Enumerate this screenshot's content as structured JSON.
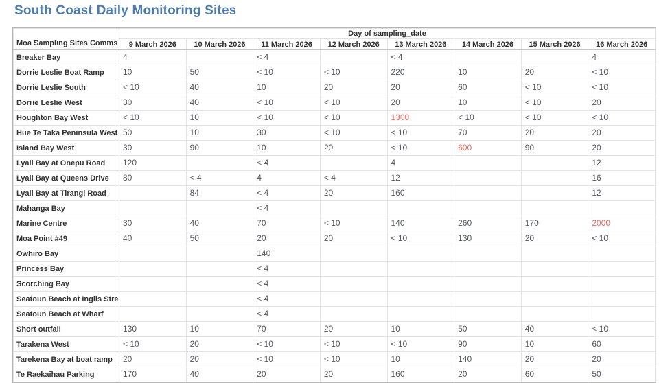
{
  "title": "South Coast Daily Monitoring Sites",
  "colors": {
    "title_blue": "#4d7cb0",
    "exceedance_red": "#f4655c"
  },
  "chart_data": {
    "type": "table",
    "title": "South Coast Daily Monitoring Sites",
    "corner_header": "Moa Sampling Sites Comms",
    "group_header": "Day of sampling_date",
    "columns": [
      "9 March 2026",
      "10 March 2026",
      "11 March 2026",
      "12 March 2026",
      "13 March 2026",
      "14 March 2026",
      "15 March 2026",
      "16 March 2026"
    ],
    "rows": [
      {
        "site": "Breaker Bay",
        "values": [
          "4",
          "",
          "< 4",
          "",
          "< 4",
          "",
          "",
          "4"
        ],
        "red": []
      },
      {
        "site": "Dorrie Leslie Boat Ramp",
        "values": [
          "10",
          "50",
          "< 10",
          "< 10",
          "220",
          "10",
          "20",
          "< 10"
        ],
        "red": []
      },
      {
        "site": "Dorrie Leslie South",
        "values": [
          "< 10",
          "40",
          "10",
          "20",
          "20",
          "60",
          "< 10",
          "< 10"
        ],
        "red": []
      },
      {
        "site": "Dorrie Leslie West",
        "values": [
          "30",
          "40",
          "< 10",
          "< 10",
          "20",
          "10",
          "< 10",
          "20"
        ],
        "red": []
      },
      {
        "site": "Houghton Bay West",
        "values": [
          "< 10",
          "10",
          "< 10",
          "< 10",
          "1300",
          "< 10",
          "< 10",
          "< 10"
        ],
        "red": [
          4
        ]
      },
      {
        "site": "Hue Te Taka Peninsula West",
        "values": [
          "50",
          "10",
          "30",
          "< 10",
          "< 10",
          "70",
          "20",
          "20"
        ],
        "red": []
      },
      {
        "site": "Island Bay West",
        "values": [
          "30",
          "90",
          "10",
          "20",
          "< 10",
          "600",
          "90",
          "20"
        ],
        "red": [
          5
        ]
      },
      {
        "site": "Lyall Bay at Onepu Road",
        "values": [
          "120",
          "",
          "< 4",
          "",
          "4",
          "",
          "",
          "12"
        ],
        "red": []
      },
      {
        "site": "Lyall Bay at Queens Drive",
        "values": [
          "80",
          "< 4",
          "4",
          "< 4",
          "12",
          "",
          "",
          "16"
        ],
        "red": []
      },
      {
        "site": "Lyall Bay at Tirangi Road",
        "values": [
          "",
          "84",
          "< 4",
          "20",
          "160",
          "",
          "",
          "12"
        ],
        "red": []
      },
      {
        "site": "Mahanga Bay",
        "values": [
          "",
          "",
          "< 4",
          "",
          "",
          "",
          "",
          ""
        ],
        "red": []
      },
      {
        "site": "Marine Centre",
        "values": [
          "30",
          "40",
          "70",
          "< 10",
          "140",
          "260",
          "170",
          "2000"
        ],
        "red": [
          7
        ]
      },
      {
        "site": "Moa Point #49",
        "values": [
          "40",
          "50",
          "20",
          "20",
          "< 10",
          "130",
          "20",
          "< 10"
        ],
        "red": []
      },
      {
        "site": "Owhiro Bay",
        "values": [
          "",
          "",
          "140",
          "",
          "",
          "",
          "",
          ""
        ],
        "red": []
      },
      {
        "site": "Princess Bay",
        "values": [
          "",
          "",
          "< 4",
          "",
          "",
          "",
          "",
          ""
        ],
        "red": []
      },
      {
        "site": "Scorching Bay",
        "values": [
          "",
          "",
          "< 4",
          "",
          "",
          "",
          "",
          ""
        ],
        "red": []
      },
      {
        "site": "Seatoun Beach at Inglis Street",
        "values": [
          "",
          "",
          "< 4",
          "",
          "",
          "",
          "",
          ""
        ],
        "red": []
      },
      {
        "site": "Seatoun Beach at Wharf",
        "values": [
          "",
          "",
          "< 4",
          "",
          "",
          "",
          "",
          ""
        ],
        "red": []
      },
      {
        "site": "Short outfall",
        "values": [
          "130",
          "10",
          "70",
          "20",
          "10",
          "50",
          "40",
          "< 10"
        ],
        "red": []
      },
      {
        "site": "Tarakena West",
        "values": [
          "< 10",
          "20",
          "< 10",
          "< 10",
          "< 10",
          "90",
          "10",
          "60"
        ],
        "red": []
      },
      {
        "site": "Tarekena Bay at boat ramp",
        "values": [
          "20",
          "20",
          "< 10",
          "< 10",
          "10",
          "140",
          "20",
          "20"
        ],
        "red": []
      },
      {
        "site": "Te Raekaihau Parking",
        "values": [
          "170",
          "40",
          "20",
          "20",
          "160",
          "20",
          "60",
          "50"
        ],
        "red": []
      }
    ]
  }
}
